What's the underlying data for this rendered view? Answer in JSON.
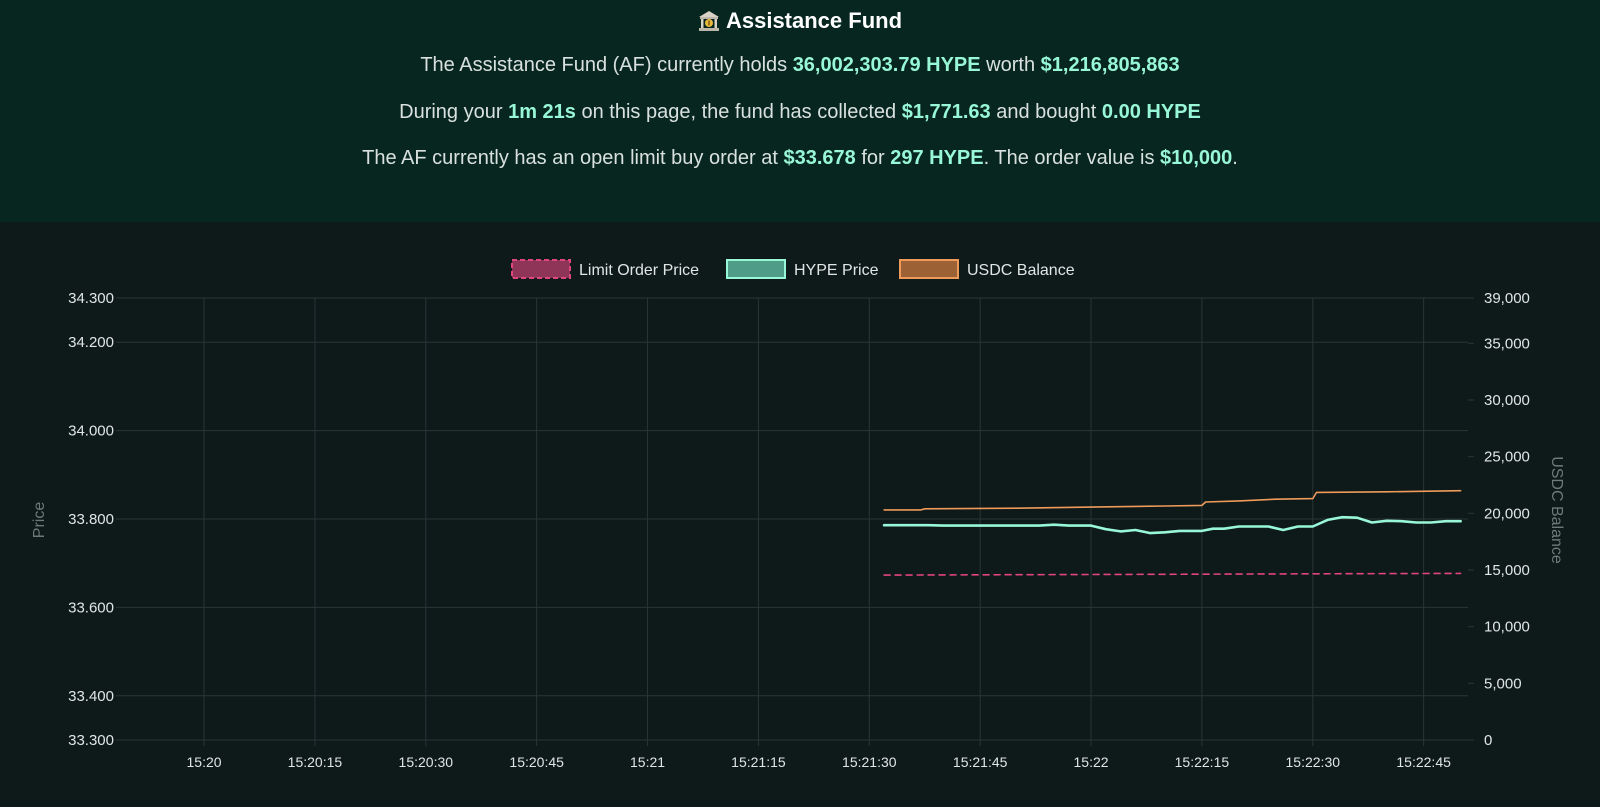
{
  "header": {
    "title": "Assistance Fund",
    "line1": {
      "pre": "The Assistance Fund (AF) currently holds ",
      "hype_amount": "36,002,303.79 HYPE",
      "mid": " worth ",
      "usd_value": "$1,216,805,863"
    },
    "line2": {
      "pre": "During your ",
      "duration": "1m 21s",
      "mid1": " on this page, the fund has collected ",
      "collected": "$1,771.63",
      "mid2": " and bought ",
      "bought": "0.00 HYPE"
    },
    "line3": {
      "pre": "The AF currently has an open limit buy order at ",
      "price": "$33.678",
      "mid1": " for ",
      "qty": "297 HYPE",
      "mid2": ". The order value is ",
      "value": "$10,000",
      "post": "."
    }
  },
  "colors": {
    "limit": "#e0457b",
    "limit_fill": "#8e3558",
    "hype": "#98f7d6",
    "hype_fill": "#4f9d88",
    "usdc": "#ee9b5a",
    "usdc_fill": "#9c6236",
    "grid": "#2a3536",
    "tick": "#e0e6e4",
    "axis_title": "#6e7a78"
  },
  "chart_data": {
    "type": "line",
    "legend": [
      {
        "name": "Limit Order Price",
        "key": "limit"
      },
      {
        "name": "HYPE Price",
        "key": "hype"
      },
      {
        "name": "USDC Balance",
        "key": "usdc"
      }
    ],
    "legend_position": "top-center",
    "x_ticks": [
      "15:20",
      "15:20:15",
      "15:20:30",
      "15:20:45",
      "15:21",
      "15:21:15",
      "15:21:30",
      "15:21:45",
      "15:22",
      "15:22:15",
      "15:22:30",
      "15:22:45"
    ],
    "x_tick_seconds": [
      0,
      15,
      30,
      45,
      60,
      75,
      90,
      105,
      120,
      135,
      150,
      165
    ],
    "xlim_seconds": [
      -11.1,
      171.0
    ],
    "left_axis": {
      "title": "Price",
      "ylim": [
        33.3,
        34.3
      ],
      "ticks": [
        "33.300",
        "33.400",
        "33.600",
        "33.800",
        "34.000",
        "34.200",
        "34.300"
      ],
      "tick_values": [
        33.3,
        33.4,
        33.6,
        33.8,
        34.0,
        34.2,
        34.3
      ]
    },
    "right_axis": {
      "title": "USDC Balance",
      "ylim": [
        0,
        39000
      ],
      "ticks": [
        "0",
        "5,000",
        "10,000",
        "15,000",
        "20,000",
        "25,000",
        "30,000",
        "35,000",
        "39,000"
      ],
      "tick_values": [
        0,
        5000,
        10000,
        15000,
        20000,
        25000,
        30000,
        35000,
        39000
      ]
    },
    "series": [
      {
        "name": "Limit Order Price",
        "axis": "left",
        "dashed": true,
        "x": [
          92,
          110,
          130,
          150,
          170
        ],
        "y": [
          33.673,
          33.674,
          33.675,
          33.676,
          33.677
        ]
      },
      {
        "name": "HYPE Price",
        "axis": "left",
        "dashed": false,
        "x": [
          92,
          98,
          100,
          108,
          113,
          115,
          117,
          120,
          122,
          124,
          126,
          128,
          130,
          132,
          133.5,
          135,
          136.5,
          138,
          140,
          142,
          144,
          146,
          148,
          150,
          152,
          154,
          156,
          158,
          160,
          162,
          164,
          166,
          168,
          170
        ],
        "y": [
          33.786,
          33.786,
          33.785,
          33.785,
          33.785,
          33.787,
          33.785,
          33.785,
          33.777,
          33.772,
          33.775,
          33.768,
          33.77,
          33.773,
          33.773,
          33.773,
          33.778,
          33.778,
          33.783,
          33.783,
          33.783,
          33.775,
          33.783,
          33.783,
          33.798,
          33.804,
          33.803,
          33.792,
          33.796,
          33.795,
          33.792,
          33.792,
          33.795,
          33.795
        ]
      },
      {
        "name": "USDC Balance",
        "axis": "right",
        "dashed": false,
        "x": [
          92,
          97,
          97.5,
          110,
          120,
          130,
          135,
          135.5,
          140,
          145,
          150,
          150.5,
          160,
          170
        ],
        "y": [
          20300,
          20300,
          20400,
          20450,
          20550,
          20650,
          20700,
          21000,
          21100,
          21250,
          21300,
          21850,
          21900,
          22000
        ]
      }
    ]
  }
}
